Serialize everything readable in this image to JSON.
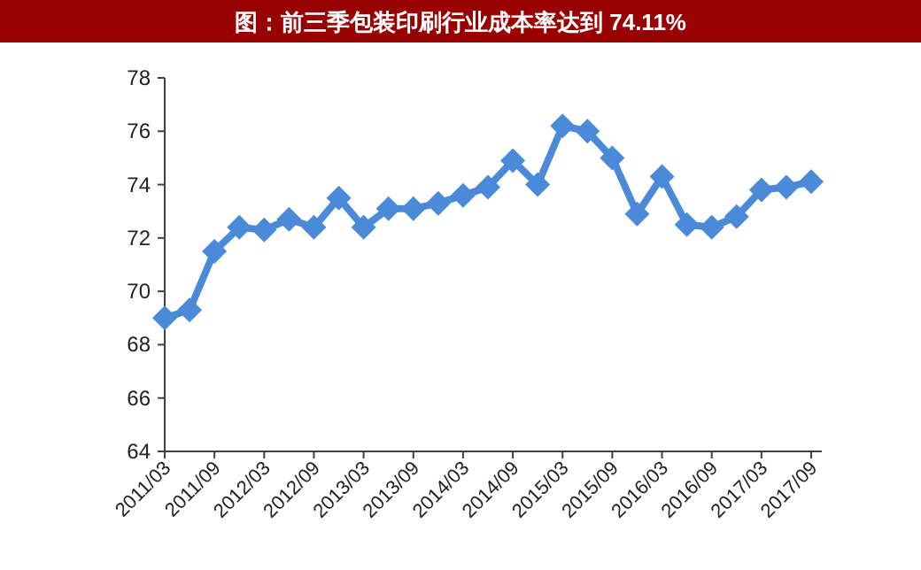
{
  "chart_data": {
    "type": "line",
    "title": "图：前三季包装印刷行业成本率达到 74.11%",
    "categories": [
      "2011/03",
      null,
      "2011/09",
      null,
      "2012/03",
      null,
      "2012/09",
      null,
      "2013/03",
      null,
      "2013/09",
      null,
      "2014/03",
      null,
      "2014/09",
      null,
      "2015/03",
      null,
      "2015/09",
      null,
      "2016/03",
      null,
      "2016/09",
      null,
      "2017/03",
      null,
      "2017/09"
    ],
    "series": [
      {
        "color": "#4a8ad8",
        "values": [
          69.0,
          69.3,
          71.5,
          72.4,
          72.3,
          72.7,
          72.4,
          73.5,
          72.4,
          73.1,
          73.1,
          73.3,
          73.6,
          73.9,
          74.9,
          74.0,
          76.2,
          76.0,
          75.0,
          72.9,
          74.3,
          72.5,
          72.4,
          72.8,
          73.8,
          73.9,
          74.11
        ]
      }
    ],
    "ylim": [
      64,
      78
    ],
    "yticks": [
      64,
      66,
      68,
      70,
      72,
      74,
      76,
      78
    ],
    "marker": "diamond",
    "grid": false
  }
}
